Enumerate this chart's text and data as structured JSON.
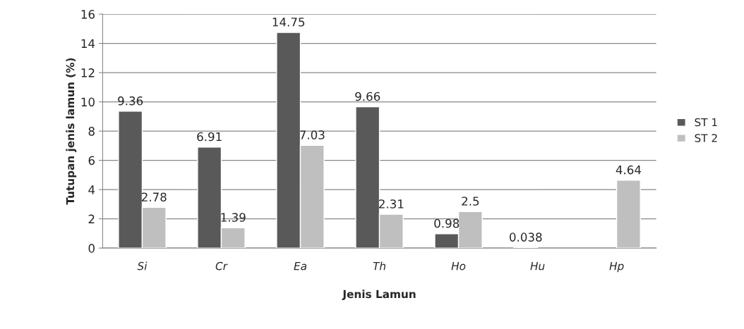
{
  "chart_data": {
    "type": "bar",
    "xlabel": "Jenis Lamun",
    "ylabel": "Tutupan jenis lamun (%)",
    "categories": [
      "Si",
      "Cr",
      "Ea",
      "Th",
      "Ho",
      "Hu",
      "Hp"
    ],
    "series": [
      {
        "name": "ST 1",
        "color": "#595959",
        "values": [
          9.36,
          6.91,
          14.75,
          9.66,
          0.98,
          0.038,
          null
        ]
      },
      {
        "name": "ST 2",
        "color": "#bfbfbf",
        "values": [
          2.78,
          1.39,
          7.03,
          2.31,
          2.5,
          null,
          4.64
        ]
      }
    ],
    "ylim": [
      0,
      16
    ],
    "yticks": [
      0,
      2,
      4,
      6,
      8,
      10,
      12,
      14,
      16
    ],
    "grid": "y",
    "legend": "right",
    "data_labels": true
  }
}
